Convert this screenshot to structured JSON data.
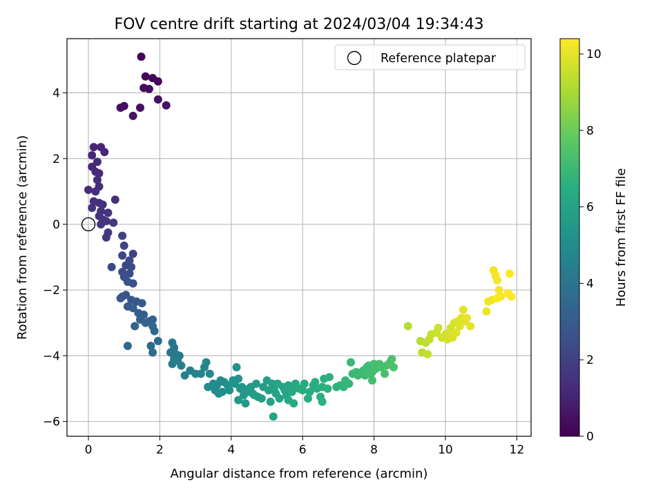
{
  "chart_data": {
    "type": "scatter",
    "title": "FOV centre drift starting at 2024/03/04 19:34:43",
    "xlabel": "Angular distance from reference (arcmin)",
    "ylabel": "Rotation from reference (arcmin)",
    "colorbar_label": "Hours from first FF file",
    "xlim": [
      -0.6,
      12.4
    ],
    "ylim": [
      -6.45,
      5.65
    ],
    "x_ticks": [
      0,
      2,
      4,
      6,
      8,
      10,
      12
    ],
    "x_tick_labels": [
      "0",
      "2",
      "4",
      "6",
      "8",
      "10",
      "12"
    ],
    "y_ticks": [
      -6,
      -4,
      -2,
      0,
      2,
      4
    ],
    "y_tick_labels": [
      "−6",
      "−4",
      "−2",
      "0",
      "2",
      "4"
    ],
    "colorbar_range": [
      0,
      10.4
    ],
    "colorbar_ticks": [
      0,
      2,
      4,
      6,
      8,
      10
    ],
    "colorbar_tick_labels": [
      "0",
      "2",
      "4",
      "6",
      "8",
      "10"
    ],
    "colormap": "viridis",
    "grid": true,
    "legend": {
      "label": "Reference platepar",
      "placement": "top-right"
    },
    "reference": {
      "x": 0,
      "y": 0
    },
    "points": [
      [
        1.48,
        5.1,
        0.05
      ],
      [
        1.6,
        4.5,
        0.1
      ],
      [
        1.8,
        4.45,
        0.15
      ],
      [
        1.95,
        4.35,
        0.2
      ],
      [
        1.55,
        4.15,
        0.25
      ],
      [
        1.7,
        4.12,
        0.3
      ],
      [
        1.0,
        3.6,
        0.35
      ],
      [
        0.9,
        3.55,
        0.4
      ],
      [
        1.45,
        3.55,
        0.45
      ],
      [
        1.95,
        3.8,
        0.5
      ],
      [
        2.18,
        3.62,
        0.55
      ],
      [
        1.25,
        3.3,
        0.6
      ],
      [
        0.15,
        2.35,
        1.1
      ],
      [
        0.35,
        2.35,
        1.1
      ],
      [
        0.45,
        2.2,
        1.15
      ],
      [
        0.1,
        2.1,
        1.15
      ],
      [
        0.25,
        1.9,
        1.2
      ],
      [
        0.1,
        1.75,
        1.2
      ],
      [
        0.2,
        1.6,
        1.25
      ],
      [
        0.3,
        1.55,
        1.25
      ],
      [
        0.25,
        1.35,
        1.3
      ],
      [
        0.3,
        1.15,
        1.3
      ],
      [
        0.0,
        1.05,
        1.35
      ],
      [
        0.2,
        1.0,
        1.35
      ],
      [
        0.75,
        0.75,
        1.4
      ],
      [
        0.15,
        0.7,
        1.4
      ],
      [
        0.3,
        0.65,
        1.45
      ],
      [
        0.4,
        0.6,
        1.45
      ],
      [
        0.1,
        0.5,
        1.5
      ],
      [
        0.35,
        0.4,
        1.5
      ],
      [
        0.55,
        0.35,
        1.55
      ],
      [
        0.3,
        0.25,
        1.55
      ],
      [
        0.4,
        0.15,
        1.6
      ],
      [
        0.5,
        0.1,
        1.6
      ],
      [
        0.7,
        0.05,
        1.65
      ],
      [
        0.35,
        0.0,
        1.65
      ],
      [
        0.55,
        -0.25,
        1.7
      ],
      [
        0.5,
        -0.4,
        1.7
      ],
      [
        0.95,
        -0.35,
        2.0
      ],
      [
        1.0,
        -0.65,
        2.05
      ],
      [
        1.25,
        -0.9,
        2.1
      ],
      [
        0.95,
        -0.95,
        2.15
      ],
      [
        1.15,
        -1.1,
        2.2
      ],
      [
        1.05,
        -1.25,
        2.25
      ],
      [
        0.65,
        -1.3,
        2.3
      ],
      [
        1.2,
        -1.3,
        2.35
      ],
      [
        0.95,
        -1.45,
        2.4
      ],
      [
        1.15,
        -1.5,
        2.45
      ],
      [
        1.0,
        -1.6,
        2.5
      ],
      [
        1.1,
        -1.75,
        2.55
      ],
      [
        1.25,
        -1.8,
        2.6
      ],
      [
        0.95,
        -2.2,
        2.65
      ],
      [
        1.05,
        -2.15,
        2.7
      ],
      [
        1.2,
        -2.3,
        2.75
      ],
      [
        0.9,
        -2.25,
        2.8
      ],
      [
        1.35,
        -2.35,
        2.85
      ],
      [
        1.5,
        -2.4,
        2.9
      ],
      [
        1.1,
        -2.5,
        2.95
      ],
      [
        1.25,
        -2.55,
        3.0
      ],
      [
        1.4,
        -2.7,
        3.05
      ],
      [
        1.55,
        -2.75,
        3.1
      ],
      [
        1.45,
        -2.9,
        3.15
      ],
      [
        1.7,
        -2.95,
        3.2
      ],
      [
        1.8,
        -2.9,
        3.25
      ],
      [
        1.6,
        -3.0,
        3.3
      ],
      [
        1.3,
        -3.1,
        3.35
      ],
      [
        1.8,
        -3.1,
        3.4
      ],
      [
        1.85,
        -3.25,
        3.45
      ],
      [
        1.1,
        -3.7,
        3.5
      ],
      [
        1.75,
        -3.7,
        3.55
      ],
      [
        1.95,
        -3.55,
        3.6
      ],
      [
        1.8,
        -3.9,
        3.65
      ],
      [
        2.35,
        -3.6,
        4.0
      ],
      [
        2.4,
        -3.75,
        4.05
      ],
      [
        2.3,
        -3.9,
        4.1
      ],
      [
        2.45,
        -3.95,
        4.15
      ],
      [
        2.55,
        -4.0,
        4.2
      ],
      [
        2.4,
        -4.1,
        4.25
      ],
      [
        2.5,
        -4.15,
        4.3
      ],
      [
        2.35,
        -4.25,
        4.35
      ],
      [
        2.6,
        -4.3,
        4.4
      ],
      [
        2.7,
        -4.6,
        4.45
      ],
      [
        2.85,
        -4.45,
        4.5
      ],
      [
        3.0,
        -4.55,
        4.6
      ],
      [
        3.15,
        -4.55,
        4.65
      ],
      [
        3.25,
        -4.35,
        4.7
      ],
      [
        3.3,
        -4.2,
        4.75
      ],
      [
        3.4,
        -4.55,
        4.8
      ],
      [
        3.5,
        -4.85,
        4.85
      ],
      [
        3.6,
        -4.9,
        4.9
      ],
      [
        3.7,
        -4.75,
        4.95
      ],
      [
        3.8,
        -4.8,
        5.0
      ],
      [
        3.35,
        -4.95,
        5.0
      ],
      [
        3.55,
        -5.05,
        5.05
      ],
      [
        3.65,
        -5.15,
        5.1
      ],
      [
        3.75,
        -5.1,
        5.15
      ],
      [
        3.9,
        -4.9,
        5.2
      ],
      [
        3.95,
        -5.05,
        5.2
      ],
      [
        4.05,
        -4.75,
        5.25
      ],
      [
        4.15,
        -4.35,
        5.3
      ],
      [
        4.1,
        -4.85,
        5.35
      ],
      [
        4.2,
        -4.7,
        5.4
      ],
      [
        4.25,
        -5.0,
        5.45
      ],
      [
        4.3,
        -4.95,
        5.45
      ],
      [
        4.35,
        -5.2,
        5.5
      ],
      [
        4.2,
        -5.35,
        5.5
      ],
      [
        4.4,
        -5.45,
        5.55
      ],
      [
        4.45,
        -5.1,
        5.6
      ],
      [
        4.55,
        -4.95,
        5.6
      ],
      [
        4.5,
        -5.0,
        5.65
      ],
      [
        4.6,
        -5.15,
        5.65
      ],
      [
        4.65,
        -5.2,
        5.7
      ],
      [
        4.7,
        -4.85,
        5.75
      ],
      [
        4.75,
        -5.25,
        5.75
      ],
      [
        4.85,
        -5.3,
        5.8
      ],
      [
        4.9,
        -4.95,
        5.8
      ],
      [
        5.0,
        -4.75,
        5.85
      ],
      [
        5.05,
        -5.05,
        5.85
      ],
      [
        5.1,
        -5.4,
        5.9
      ],
      [
        5.15,
        -4.85,
        5.9
      ],
      [
        5.2,
        -5.0,
        5.95
      ],
      [
        5.25,
        -5.15,
        5.95
      ],
      [
        5.18,
        -5.85,
        6.0
      ],
      [
        5.3,
        -4.85,
        6.0
      ],
      [
        5.35,
        -5.3,
        6.05
      ],
      [
        5.45,
        -4.95,
        6.05
      ],
      [
        5.5,
        -5.05,
        6.1
      ],
      [
        5.55,
        -5.2,
        6.1
      ],
      [
        5.6,
        -4.9,
        6.15
      ],
      [
        5.65,
        -5.0,
        6.15
      ],
      [
        5.7,
        -5.1,
        6.2
      ],
      [
        5.75,
        -4.95,
        6.2
      ],
      [
        5.8,
        -4.85,
        6.25
      ],
      [
        5.6,
        -5.35,
        6.25
      ],
      [
        5.75,
        -5.45,
        6.3
      ],
      [
        5.9,
        -5.0,
        6.3
      ],
      [
        6.0,
        -5.05,
        6.35
      ],
      [
        6.05,
        -4.85,
        6.35
      ],
      [
        6.15,
        -5.3,
        6.4
      ],
      [
        6.2,
        -5.1,
        6.4
      ],
      [
        6.3,
        -4.9,
        6.45
      ],
      [
        6.35,
        -4.8,
        6.45
      ],
      [
        6.4,
        -5.0,
        6.5
      ],
      [
        6.5,
        -5.25,
        6.5
      ],
      [
        6.55,
        -4.95,
        6.55
      ],
      [
        6.6,
        -4.7,
        6.55
      ],
      [
        6.55,
        -5.4,
        6.6
      ],
      [
        6.7,
        -5.0,
        6.6
      ],
      [
        6.75,
        -4.65,
        6.65
      ],
      [
        6.95,
        -4.95,
        6.7
      ],
      [
        7.05,
        -4.9,
        6.75
      ],
      [
        7.15,
        -4.95,
        6.8
      ],
      [
        7.2,
        -4.75,
        6.85
      ],
      [
        7.3,
        -4.85,
        6.85
      ],
      [
        7.35,
        -4.2,
        6.9
      ],
      [
        7.4,
        -4.55,
        6.9
      ],
      [
        7.5,
        -4.5,
        6.95
      ],
      [
        7.55,
        -4.6,
        7.0
      ],
      [
        7.65,
        -4.5,
        7.0
      ],
      [
        7.7,
        -4.45,
        7.05
      ],
      [
        7.75,
        -4.6,
        7.05
      ],
      [
        7.8,
        -4.35,
        7.1
      ],
      [
        7.85,
        -4.3,
        7.1
      ],
      [
        7.9,
        -4.55,
        7.15
      ],
      [
        7.95,
        -4.5,
        7.15
      ],
      [
        7.95,
        -4.75,
        7.2
      ],
      [
        8.0,
        -4.25,
        7.2
      ],
      [
        8.05,
        -4.4,
        7.25
      ],
      [
        8.15,
        -4.25,
        7.25
      ],
      [
        8.2,
        -4.35,
        7.3
      ],
      [
        8.3,
        -4.55,
        7.3
      ],
      [
        8.35,
        -4.3,
        7.35
      ],
      [
        8.45,
        -4.2,
        7.35
      ],
      [
        8.5,
        -4.1,
        7.4
      ],
      [
        8.55,
        -4.35,
        7.4
      ],
      [
        8.95,
        -3.1,
        9.2
      ],
      [
        9.3,
        -3.55,
        9.25
      ],
      [
        9.35,
        -3.9,
        9.3
      ],
      [
        9.45,
        -3.6,
        9.35
      ],
      [
        9.55,
        -3.5,
        9.4
      ],
      [
        9.5,
        -3.95,
        9.45
      ],
      [
        9.6,
        -3.35,
        9.5
      ],
      [
        9.75,
        -3.3,
        9.55
      ],
      [
        9.8,
        -3.15,
        9.6
      ],
      [
        9.9,
        -3.45,
        9.65
      ],
      [
        10.0,
        -3.35,
        9.7
      ],
      [
        10.05,
        -3.5,
        9.7
      ],
      [
        10.1,
        -3.3,
        9.75
      ],
      [
        10.15,
        -3.15,
        9.75
      ],
      [
        10.2,
        -3.45,
        9.8
      ],
      [
        10.25,
        -3.0,
        9.8
      ],
      [
        10.3,
        -3.3,
        9.85
      ],
      [
        10.35,
        -2.95,
        9.85
      ],
      [
        10.4,
        -3.1,
        9.9
      ],
      [
        10.45,
        -2.85,
        9.9
      ],
      [
        10.5,
        -2.6,
        9.95
      ],
      [
        10.55,
        -2.95,
        9.95
      ],
      [
        10.6,
        -2.85,
        10.0
      ],
      [
        10.7,
        -3.1,
        10.0
      ],
      [
        11.15,
        -2.65,
        10.1
      ],
      [
        11.2,
        -2.35,
        10.15
      ],
      [
        11.3,
        -2.3,
        10.2
      ],
      [
        11.35,
        -1.4,
        10.2
      ],
      [
        11.4,
        -1.55,
        10.25
      ],
      [
        11.45,
        -1.7,
        10.25
      ],
      [
        11.5,
        -2.0,
        10.3
      ],
      [
        11.55,
        -2.2,
        10.3
      ],
      [
        11.45,
        -2.25,
        10.35
      ],
      [
        11.75,
        -2.1,
        10.35
      ],
      [
        11.8,
        -1.5,
        10.4
      ],
      [
        11.85,
        -2.2,
        10.4
      ]
    ]
  }
}
